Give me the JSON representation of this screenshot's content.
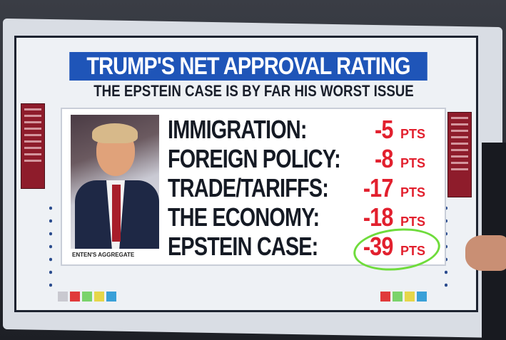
{
  "graphic": {
    "title": "TRUMP'S NET APPROVAL RATING",
    "subtitle": "THE EPSTEIN CASE IS BY FAR HIS WORST ISSUE",
    "photo_credit": "ENTEN'S AGGREGATE",
    "unit": "PTS",
    "rows": [
      {
        "label": "IMMIGRATION:",
        "value": "-5"
      },
      {
        "label": "FOREIGN POLICY:",
        "value": "-8"
      },
      {
        "label": "TRADE/TARIFFS:",
        "value": "-17"
      },
      {
        "label": "THE ECONOMY:",
        "value": "-18"
      },
      {
        "label": "EPSTEIN CASE:",
        "value": "-39"
      }
    ],
    "highlighted": "EPSTEIN CASE",
    "colors": {
      "title_bg": "#1f55b8",
      "value": "#e2202e",
      "highlight_circle": "#6fdc3c"
    }
  }
}
